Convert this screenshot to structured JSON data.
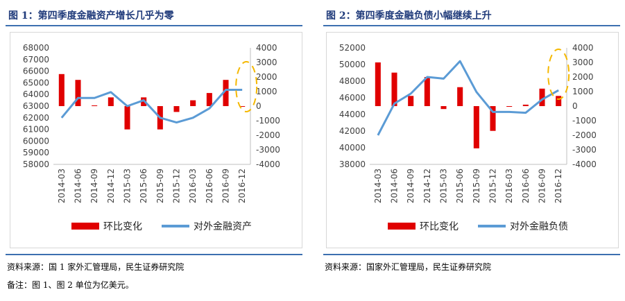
{
  "figures": [
    {
      "title": "图 1：第四季度金融资产增长几乎为零"
    },
    {
      "title": "图 2：第四季度金融负债小幅继续上升"
    }
  ],
  "footer": {
    "source_left": "资料来源：国 1 家外汇管理局，民生证券研究院",
    "note_left": "备注：图 1、图 2 单位为亿美元。",
    "source_right": "资料来源：国家外汇管理局，民生证券研究院"
  },
  "colors": {
    "bar": "#e00000",
    "line": "#5b9bd5",
    "highlight": "#f5b800"
  },
  "chart_data": [
    {
      "type": "bar+line",
      "title": "",
      "categories": [
        "2014-03",
        "2014-06",
        "2014-09",
        "2014-12",
        "2015-03",
        "2015-06",
        "2015-09",
        "2015-12",
        "2016-03",
        "2016-06",
        "2016-09",
        "2016-12"
      ],
      "y_left_ticks": [
        "68000",
        "67000",
        "66000",
        "65000",
        "64000",
        "63000",
        "62000",
        "61000",
        "60000",
        "59000",
        "58000"
      ],
      "y_right_ticks": [
        "4000",
        "3000",
        "2000",
        "1000",
        "0",
        "-1000",
        "-2000",
        "-3000",
        "-4000"
      ],
      "ylim_left": [
        58000,
        68000
      ],
      "ylim_right": [
        -4000,
        4000
      ],
      "series": [
        {
          "name": "环比变化",
          "axis": "right",
          "kind": "bar",
          "values": [
            2200,
            1800,
            50,
            600,
            -1600,
            600,
            -1600,
            -400,
            400,
            900,
            1800,
            0
          ]
        },
        {
          "name": "对外金融资产",
          "axis": "left",
          "kind": "line",
          "values": [
            62000,
            63700,
            63700,
            64200,
            63000,
            63500,
            62000,
            61600,
            62000,
            62800,
            64400,
            64400
          ]
        }
      ]
    },
    {
      "type": "bar+line",
      "title": "",
      "categories": [
        "2014-03",
        "2014-06",
        "2014-09",
        "2014-12",
        "2015-03",
        "2015-06",
        "2015-09",
        "2015-12",
        "2016-03",
        "2016-06",
        "2016-09",
        "2016-12"
      ],
      "y_left_ticks": [
        "52000",
        "50000",
        "48000",
        "46000",
        "44000",
        "42000",
        "40000",
        "38000"
      ],
      "y_right_ticks": [
        "4000",
        "3000",
        "2000",
        "1000",
        "0",
        "-1000",
        "-2000",
        "-3000",
        "-4000"
      ],
      "ylim_left": [
        38000,
        52000
      ],
      "ylim_right": [
        -4000,
        4000
      ],
      "series": [
        {
          "name": "环比变化",
          "axis": "right",
          "kind": "bar",
          "values": [
            3000,
            2300,
            700,
            2000,
            -200,
            1300,
            -2900,
            -1700,
            0,
            100,
            1200,
            700
          ]
        },
        {
          "name": "对外金融负债",
          "axis": "left",
          "kind": "line",
          "values": [
            41500,
            45300,
            46500,
            48500,
            48300,
            50400,
            46700,
            44300,
            44300,
            44200,
            45800,
            46900
          ]
        }
      ]
    }
  ]
}
